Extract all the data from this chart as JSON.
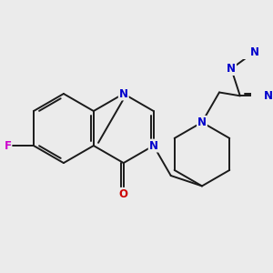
{
  "bg_color": "#ebebeb",
  "bond_color": "#1a1a1a",
  "N_color": "#0000cc",
  "O_color": "#cc0000",
  "F_color": "#cc00cc",
  "bond_width": 1.4,
  "font_size": 8.5,
  "figsize": [
    3.0,
    3.0
  ],
  "dpi": 100,
  "xlim": [
    -0.3,
    5.8
  ],
  "ylim": [
    -1.8,
    2.0
  ]
}
